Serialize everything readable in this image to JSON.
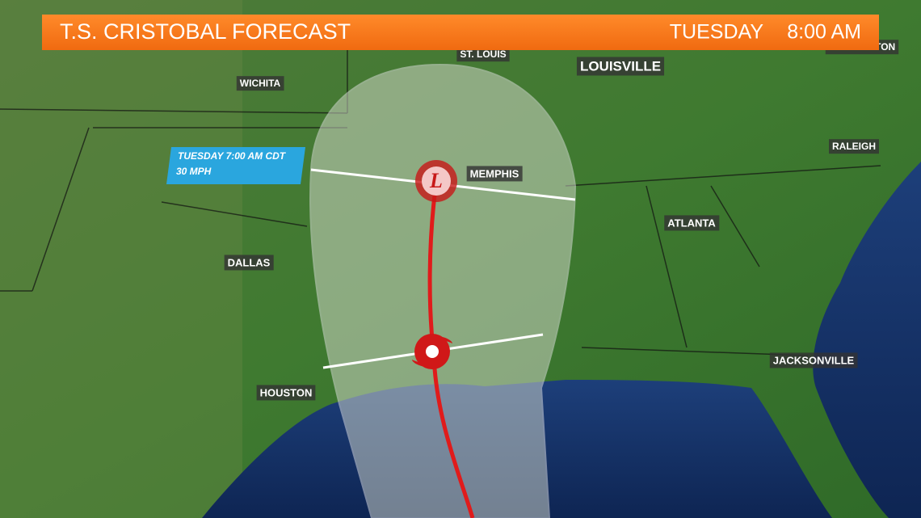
{
  "header": {
    "title": "T.S. CRISTOBAL FORECAST",
    "day": "TUESDAY",
    "time": "8:00 AM"
  },
  "info_box": {
    "time": "TUESDAY 7:00 AM CDT",
    "wind": "30 MPH"
  },
  "storm_marker": {
    "letter": "L"
  },
  "cities": [
    {
      "label": "ST. LOUIS"
    },
    {
      "label": "LOUISVILLE"
    },
    {
      "label": "WICHITA"
    },
    {
      "label": "MEMPHIS"
    },
    {
      "label": "RALEIGH"
    },
    {
      "label": "ATLANTA"
    },
    {
      "label": "DALLAS"
    },
    {
      "label": "HOUSTON"
    },
    {
      "label": "JACKSONVILLE"
    },
    {
      "label": "WASHINGTON"
    }
  ]
}
